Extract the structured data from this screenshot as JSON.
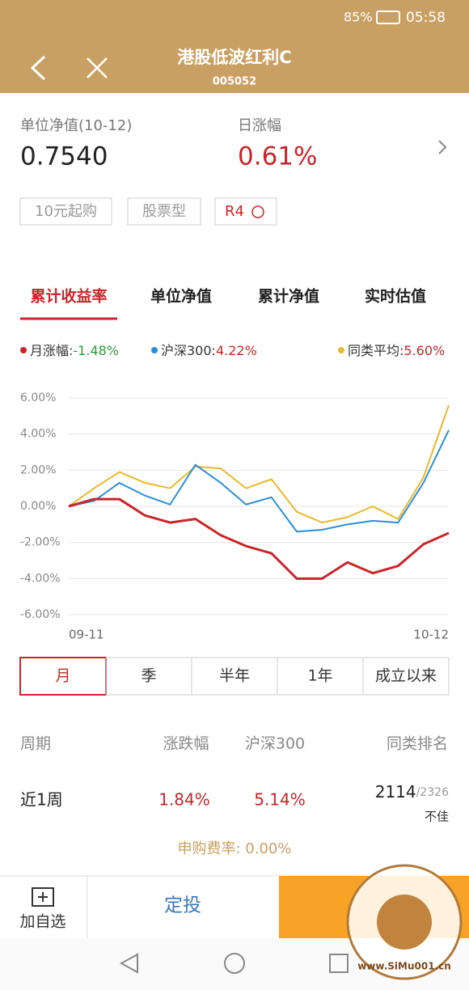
{
  "status_bar": {
    "battery": "85%",
    "time": "05:58"
  },
  "header": {
    "title": "港股低波红利C",
    "code": "005052"
  },
  "summary": {
    "nav_label": "单位净值(10-12)",
    "nav_value": "0.7540",
    "change_label": "日涨幅",
    "change_value": "0.61%"
  },
  "tags": [
    "10元起购",
    "股票型",
    "R4"
  ],
  "tabs": [
    "累计收益率",
    "单位净值",
    "累计净值",
    "实时估值"
  ],
  "chart_data": {
    "type": "line",
    "categories": [
      "09-11",
      null,
      null,
      null,
      null,
      null,
      null,
      null,
      null,
      null,
      null,
      null,
      null,
      null,
      null,
      "10-12"
    ],
    "series": [
      {
        "name": "月涨幅:",
        "change_label": "-1.48%",
        "label_color": "#2e9a3e",
        "color": "#c8262b",
        "width": 3,
        "values": [
          0,
          0.4,
          0.4,
          -0.5,
          -0.9,
          -0.7,
          -1.6,
          -2.2,
          -2.6,
          -4.0,
          -4.0,
          -3.1,
          -3.7,
          -3.3,
          -2.1,
          -1.48
        ]
      },
      {
        "name": "沪深300:",
        "change_label": "4.22%",
        "label_color": "#c8262b",
        "color": "#2c8fd6",
        "width": 2,
        "values": [
          0,
          0.3,
          1.3,
          0.6,
          0.1,
          2.3,
          1.3,
          0.1,
          0.5,
          -1.4,
          -1.3,
          -1.0,
          -0.8,
          -0.9,
          1.3,
          4.22
        ]
      },
      {
        "name": "同类平均:",
        "change_label": "5.60%",
        "label_color": "#c8262b",
        "color": "#e8b92e",
        "width": 2,
        "values": [
          0,
          1.0,
          1.9,
          1.3,
          1.0,
          2.2,
          2.1,
          1.0,
          1.5,
          -0.3,
          -0.9,
          -0.6,
          0.0,
          -0.7,
          1.6,
          5.6
        ]
      }
    ],
    "ylim": [
      -6,
      6
    ],
    "yticks": [
      {
        "value": 6,
        "label": "6.00%"
      },
      {
        "value": 4,
        "label": "4.00%"
      },
      {
        "value": 2,
        "label": "2.00%"
      },
      {
        "value": 0,
        "label": "0.00%"
      },
      {
        "value": -2,
        "label": "-2.00%"
      },
      {
        "value": -4,
        "label": "-4.00%"
      },
      {
        "value": -6,
        "label": "-6.00%"
      }
    ],
    "grid": true
  },
  "periods": [
    "月",
    "季",
    "半年",
    "1年",
    "成立以来"
  ],
  "table": {
    "header": [
      "周期",
      "涨跌幅",
      "沪深300",
      "同类排名"
    ],
    "rows": [
      [
        "近1周",
        "1.84%",
        "5.14%",
        "2114",
        "/2326",
        "不佳"
      ]
    ]
  },
  "fee": "申购费率: 0.00%",
  "bottom_bar": {
    "watch": "加自选",
    "invest": "定投"
  },
  "watermark": "www.SiMu001.cn"
}
